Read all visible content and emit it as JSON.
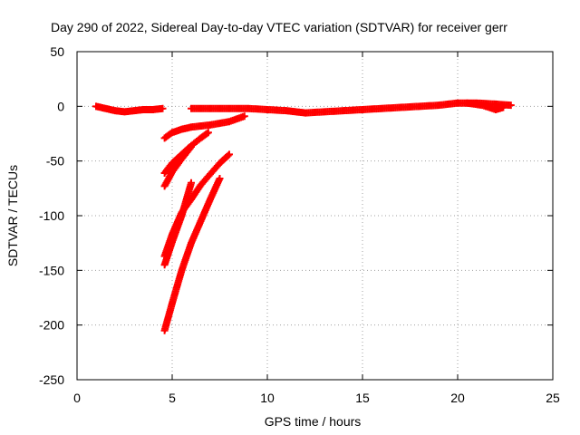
{
  "chart_data": {
    "type": "scatter",
    "title": "Day 290 of 2022, Sidereal Day-to-day VTEC variation (SDTVAR) for receiver gerr",
    "xlabel": "GPS time / hours",
    "ylabel": "SDTVAR / TECUs",
    "xlim": [
      0,
      25
    ],
    "ylim": [
      -250,
      50
    ],
    "xticks": [
      0,
      5,
      10,
      15,
      20,
      25
    ],
    "yticks": [
      -250,
      -200,
      -150,
      -100,
      -50,
      0,
      50
    ],
    "grid": true,
    "marker": "plus",
    "colors": {
      "series": "#ff0000",
      "grid": "#a0a0a0",
      "axis": "#000000"
    },
    "series": [
      {
        "points": [
          [
            1.0,
            0
          ],
          [
            1.5,
            -2
          ],
          [
            2.0,
            -4
          ],
          [
            2.5,
            -5
          ],
          [
            3.0,
            -4
          ],
          [
            3.5,
            -3
          ],
          [
            4.0,
            -3
          ],
          [
            4.5,
            -2
          ]
        ]
      },
      {
        "points": [
          [
            6.0,
            -2
          ],
          [
            7.0,
            -2
          ],
          [
            8.0,
            -2
          ],
          [
            9.0,
            -2
          ],
          [
            10.0,
            -3
          ],
          [
            11.0,
            -4
          ],
          [
            11.5,
            -5
          ],
          [
            12.0,
            -6
          ],
          [
            13.0,
            -5
          ],
          [
            14.0,
            -4
          ],
          [
            15.0,
            -3
          ],
          [
            16.0,
            -2
          ],
          [
            17.0,
            -1
          ],
          [
            18.0,
            0
          ],
          [
            19.0,
            1
          ],
          [
            20.0,
            3
          ],
          [
            21.0,
            3
          ],
          [
            22.0,
            2
          ],
          [
            22.8,
            1
          ]
        ]
      },
      {
        "points": [
          [
            20.5,
            3
          ],
          [
            21.3,
            1
          ],
          [
            22.0,
            -3
          ],
          [
            22.4,
            -1
          ]
        ]
      },
      {
        "points": [
          [
            4.6,
            -29
          ],
          [
            5.0,
            -24
          ],
          [
            5.5,
            -21
          ],
          [
            6.0,
            -19
          ],
          [
            7.0,
            -17
          ],
          [
            8.0,
            -14
          ],
          [
            8.8,
            -9
          ]
        ]
      },
      {
        "points": [
          [
            4.6,
            -61
          ],
          [
            5.0,
            -52
          ],
          [
            5.5,
            -44
          ],
          [
            6.0,
            -36
          ],
          [
            6.5,
            -29
          ],
          [
            6.9,
            -24
          ]
        ]
      },
      {
        "points": [
          [
            4.6,
            -73
          ],
          [
            5.0,
            -60
          ],
          [
            5.5,
            -48
          ],
          [
            6.0,
            -37
          ]
        ]
      },
      {
        "points": [
          [
            4.6,
            -137
          ],
          [
            5.0,
            -117
          ],
          [
            5.5,
            -97
          ],
          [
            6.0,
            -85
          ],
          [
            6.5,
            -72
          ],
          [
            7.0,
            -62
          ],
          [
            7.5,
            -52
          ],
          [
            8.0,
            -44
          ]
        ]
      },
      {
        "points": [
          [
            4.6,
            -145
          ],
          [
            5.0,
            -124
          ],
          [
            5.5,
            -100
          ],
          [
            6.0,
            -70
          ]
        ]
      },
      {
        "points": [
          [
            4.6,
            -205
          ],
          [
            5.0,
            -180
          ],
          [
            5.5,
            -150
          ],
          [
            6.0,
            -125
          ],
          [
            6.5,
            -105
          ],
          [
            7.0,
            -85
          ],
          [
            7.5,
            -66
          ]
        ]
      }
    ]
  }
}
